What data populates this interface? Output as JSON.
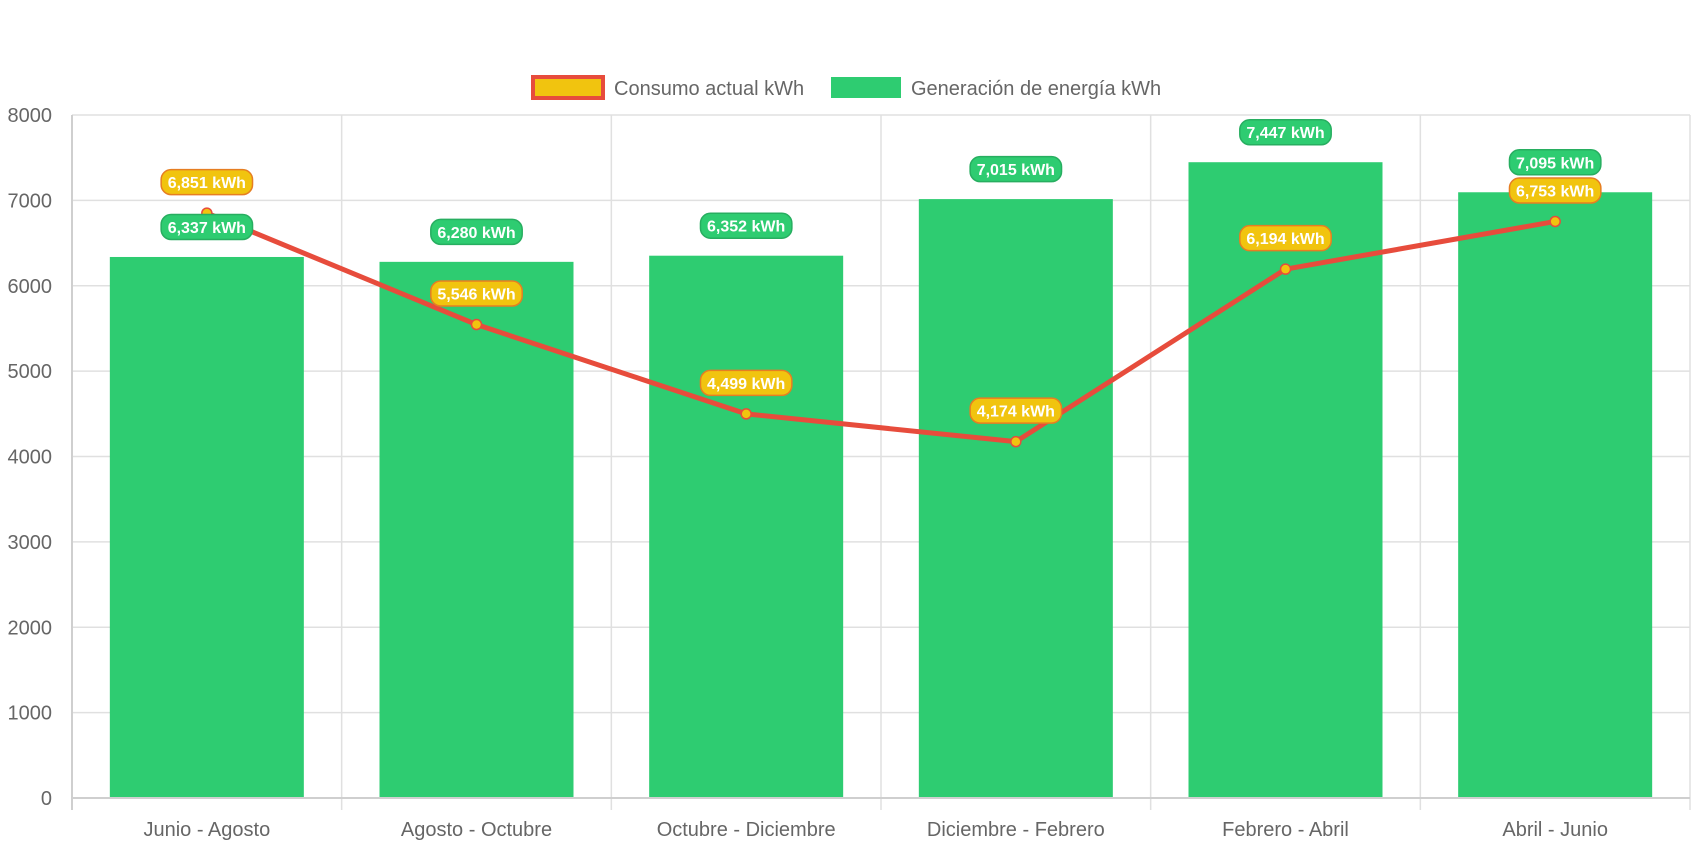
{
  "chart_data": {
    "type": "bar",
    "title": "",
    "xlabel": "",
    "ylabel": "",
    "ylim": [
      0,
      8000
    ],
    "yticks": [
      0,
      1000,
      2000,
      3000,
      4000,
      5000,
      6000,
      7000,
      8000
    ],
    "grid": true,
    "legend_position": "top-center",
    "categories": [
      "Junio - Agosto",
      "Agosto - Octubre",
      "Octubre - Diciembre",
      "Diciembre - Febrero",
      "Febrero - Abril",
      "Abril - Junio"
    ],
    "series": [
      {
        "name": "Consumo actual kWh",
        "type": "line",
        "color": "#e74c3c",
        "point_color": "#f1c40f",
        "values": [
          6851,
          5546,
          4499,
          4174,
          6194,
          6753
        ],
        "labels": [
          "6,851 kWh",
          "5,546 kWh",
          "4,499 kWh",
          "4,174 kWh",
          "6,194 kWh",
          "6,753 kWh"
        ]
      },
      {
        "name": "Generación de energía kWh",
        "type": "bar",
        "color": "#2ecc71",
        "values": [
          6337,
          6280,
          6352,
          7015,
          7447,
          7095
        ],
        "labels": [
          "6,337 kWh",
          "6,280 kWh",
          "6,352 kWh",
          "7,015 kWh",
          "7,447 kWh",
          "7,095 kWh"
        ]
      }
    ]
  }
}
